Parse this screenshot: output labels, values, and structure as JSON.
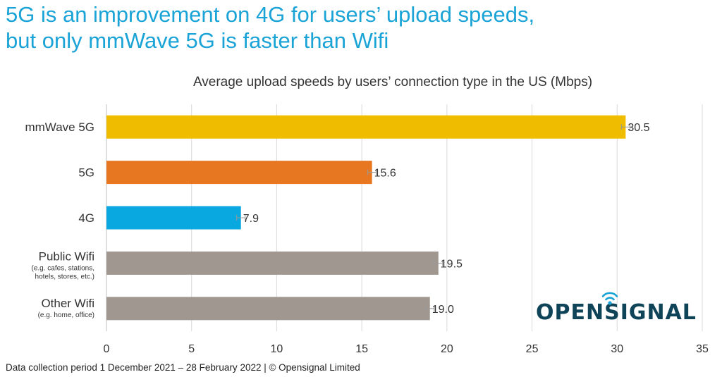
{
  "headline": {
    "line1": "5G is an improvement on 4G for users’ upload speeds,",
    "line2": "but only mmWave 5G is faster than Wifi"
  },
  "chart_data": {
    "type": "bar",
    "orientation": "horizontal",
    "title": "Average upload speeds by users’ connection type in the US (Mbps)",
    "categories": [
      {
        "label": "mmWave 5G",
        "sublabel": "",
        "value": 30.5,
        "value_label": "30.5",
        "color": "#f0bc00"
      },
      {
        "label": "5G",
        "sublabel": "",
        "value": 15.6,
        "value_label": "15.6",
        "color": "#e87722"
      },
      {
        "label": "4G",
        "sublabel": "",
        "value": 7.9,
        "value_label": "7.9",
        "color": "#0aa8e0"
      },
      {
        "label": "Public Wifi",
        "sublabel": [
          "(e.g. cafes, stations,",
          "hotels, stores, etc.)"
        ],
        "value": 19.5,
        "value_label": "19.5",
        "color": "#a09890"
      },
      {
        "label": "Other Wifi",
        "sublabel": [
          "(e.g. home, office)"
        ],
        "value": 19.0,
        "value_label": "19.0",
        "color": "#a09890"
      }
    ],
    "xlim": [
      0,
      35
    ],
    "xticks": [
      0,
      5,
      10,
      15,
      20,
      25,
      30,
      35
    ],
    "grid": "vertical",
    "error_bars": true
  },
  "footer": "Data collection period 1 December 2021 –  28 February 2022  |  © Opensignal Limited",
  "logo": {
    "text": "OPENSIGNAL",
    "color": "#0f4358",
    "icon_color": "#1aa3d6",
    "icon": "signal-waves-icon"
  }
}
